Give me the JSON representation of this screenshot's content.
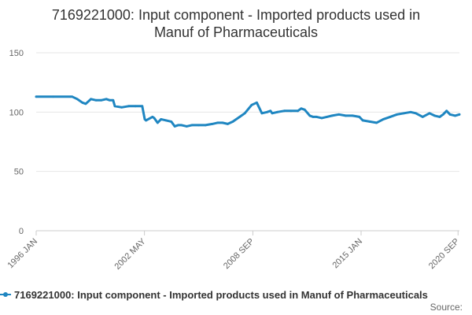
{
  "title_line1": "7169221000: Input component - Imported products used in",
  "title_line2": "Manuf of Pharmaceuticals",
  "legend_label": "7169221000: Input component - Imported products used in Manuf of Pharmaceuticals",
  "source_label": "Source:",
  "colors": {
    "series": "#1f86c1",
    "grid": "#e6e6e6",
    "axis_text": "#666666"
  },
  "chart_data": {
    "type": "line",
    "title": "7169221000: Input component - Imported products used in Manuf of Pharmaceuticals",
    "xlabel": "",
    "ylabel": "",
    "ylim": [
      0,
      150
    ],
    "yticks": [
      0,
      50,
      100,
      150
    ],
    "xlim": [
      1996.0,
      2020.75
    ],
    "xticks": [
      {
        "value": 1996.0,
        "label": "1996 JAN"
      },
      {
        "value": 2002.33,
        "label": "2002 MAY"
      },
      {
        "value": 2008.67,
        "label": "2008 SEP"
      },
      {
        "value": 2015.0,
        "label": "2015 JAN"
      },
      {
        "value": 2020.67,
        "label": "2020 SEP"
      }
    ],
    "series": [
      {
        "name": "7169221000: Input component - Imported products used in Manuf of Pharmaceuticals",
        "x": [
          1996.0,
          1997.0,
          1998.0,
          1998.1,
          1998.4,
          1998.7,
          1998.9,
          1999.2,
          1999.5,
          1999.8,
          2000.1,
          2000.3,
          2000.5,
          2000.6,
          2001.0,
          2001.4,
          2001.8,
          2002.2,
          2002.35,
          2002.42,
          2002.8,
          2002.9,
          2003.1,
          2003.3,
          2003.6,
          2003.9,
          2004.1,
          2004.3,
          2004.5,
          2004.8,
          2005.1,
          2005.5,
          2005.9,
          2006.3,
          2006.6,
          2006.9,
          2007.2,
          2007.5,
          2007.9,
          2008.2,
          2008.6,
          2008.9,
          2009.2,
          2009.5,
          2009.7,
          2009.8,
          2010.1,
          2010.5,
          2010.9,
          2011.3,
          2011.5,
          2011.7,
          2012.0,
          2012.2,
          2012.4,
          2012.7,
          2013.0,
          2013.3,
          2013.7,
          2014.1,
          2014.5,
          2014.9,
          2015.1,
          2015.5,
          2015.9,
          2016.3,
          2016.7,
          2017.1,
          2017.5,
          2017.9,
          2018.2,
          2018.6,
          2019.0,
          2019.3,
          2019.6,
          2019.8,
          2020.0,
          2020.2,
          2020.5,
          2020.75
        ],
        "values": [
          113,
          113,
          113,
          113,
          111,
          108,
          107,
          111,
          110,
          110,
          111,
          110,
          110,
          105,
          104,
          105,
          105,
          105,
          94,
          93,
          96,
          95,
          91,
          94,
          93,
          92,
          88,
          89,
          89,
          88,
          89,
          89,
          89,
          90,
          91,
          91,
          90,
          92,
          96,
          99,
          106,
          108,
          99,
          100,
          101,
          99,
          100,
          101,
          101,
          101,
          103,
          102,
          97,
          96,
          96,
          95,
          96,
          97,
          98,
          97,
          97,
          96,
          93,
          92,
          91,
          94,
          96,
          98,
          99,
          100,
          99,
          96,
          99,
          97,
          96,
          98,
          101,
          98,
          97,
          98
        ]
      }
    ]
  }
}
